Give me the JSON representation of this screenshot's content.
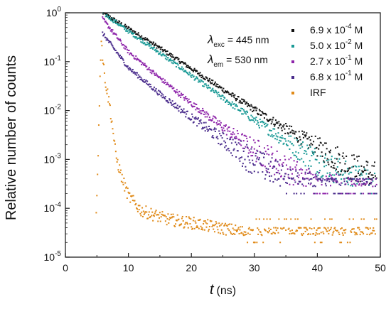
{
  "chart_data": {
    "type": "scatter",
    "title": "",
    "xlabel_var": "t",
    "xlabel_unit": "(ns)",
    "ylabel": "Relative number of counts",
    "xlim": [
      0,
      50
    ],
    "ylim": [
      1e-05,
      1
    ],
    "yscale": "log",
    "grid": false,
    "legend_position": "top-right",
    "x_ticks": [
      "0",
      "10",
      "20",
      "30",
      "40",
      "50"
    ],
    "y_tick_exponents": [
      "0",
      "-1",
      "-2",
      "-3",
      "-4",
      "-5"
    ],
    "y_tick_base": "10",
    "annotations": [
      {
        "symbol": "λ",
        "sub": "exc",
        "text": " = 445 nm"
      },
      {
        "symbol": "λ",
        "sub": "em",
        "text": " = 530 nm"
      }
    ],
    "series": [
      {
        "name": "6.9 x 10⁻⁴ M",
        "name_base": "6.9 x 10",
        "name_exp": "-4",
        "name_unit": " M",
        "color": "#111111",
        "points": [
          [
            5.9,
            1.0
          ],
          [
            10,
            0.48
          ],
          [
            15,
            0.19
          ],
          [
            20,
            0.072
          ],
          [
            25,
            0.027
          ],
          [
            30,
            0.0105
          ],
          [
            35,
            0.0042
          ],
          [
            40,
            0.0018
          ],
          [
            45,
            0.00075
          ],
          [
            49.5,
            0.00045
          ]
        ],
        "floor": 0.0002
      },
      {
        "name": "5.0 x 10⁻² M",
        "name_base": "5.0 x 10",
        "name_exp": "-2",
        "name_unit": " M",
        "color": "#1a9a96",
        "points": [
          [
            5.9,
            1.0
          ],
          [
            10,
            0.42
          ],
          [
            15,
            0.15
          ],
          [
            20,
            0.052
          ],
          [
            25,
            0.018
          ],
          [
            30,
            0.0064
          ],
          [
            35,
            0.0024
          ],
          [
            40,
            0.00092
          ],
          [
            45,
            0.00045
          ],
          [
            49.5,
            0.0003
          ]
        ],
        "floor": 0.0002
      },
      {
        "name": "2.7 x 10⁻¹ M",
        "name_base": "2.7 x 10",
        "name_exp": "-1",
        "name_unit": " M",
        "color": "#8e24aa",
        "points": [
          [
            5.9,
            0.75
          ],
          [
            10,
            0.16
          ],
          [
            15,
            0.046
          ],
          [
            20,
            0.014
          ],
          [
            25,
            0.0046
          ],
          [
            30,
            0.0016
          ],
          [
            35,
            0.00065
          ],
          [
            40,
            0.0003
          ],
          [
            49.5,
            0.0002
          ]
        ],
        "floor": 0.0002
      },
      {
        "name": "6.8 x 10⁻¹ M",
        "name_base": "6.8 x 10",
        "name_exp": "-1",
        "name_unit": " M",
        "color": "#4a2c8c",
        "points": [
          [
            5.9,
            0.38
          ],
          [
            10,
            0.075
          ],
          [
            15,
            0.022
          ],
          [
            20,
            0.0072
          ],
          [
            25,
            0.0025
          ],
          [
            30,
            0.0009
          ],
          [
            35,
            0.0004
          ],
          [
            40,
            0.00025
          ],
          [
            49.5,
            0.0002
          ]
        ],
        "floor": 0.0002
      },
      {
        "name": "IRF",
        "name_base": "IRF",
        "name_exp": "",
        "name_unit": "",
        "color": "#e08a18",
        "points": [
          [
            4.9,
            8e-05
          ],
          [
            5.3,
            0.004
          ],
          [
            5.5,
            0.06
          ],
          [
            5.7,
            0.3
          ],
          [
            6.0,
            0.09
          ],
          [
            6.5,
            0.03
          ],
          [
            7.0,
            0.014
          ],
          [
            7.5,
            0.0045
          ],
          [
            8.0,
            0.0012
          ],
          [
            9,
            0.0004
          ],
          [
            10,
            0.00018
          ],
          [
            12,
            9e-05
          ],
          [
            16,
            6e-05
          ],
          [
            20,
            5e-05
          ],
          [
            30,
            3e-05
          ],
          [
            49.5,
            3e-05
          ]
        ],
        "floor": 2e-05
      }
    ]
  }
}
